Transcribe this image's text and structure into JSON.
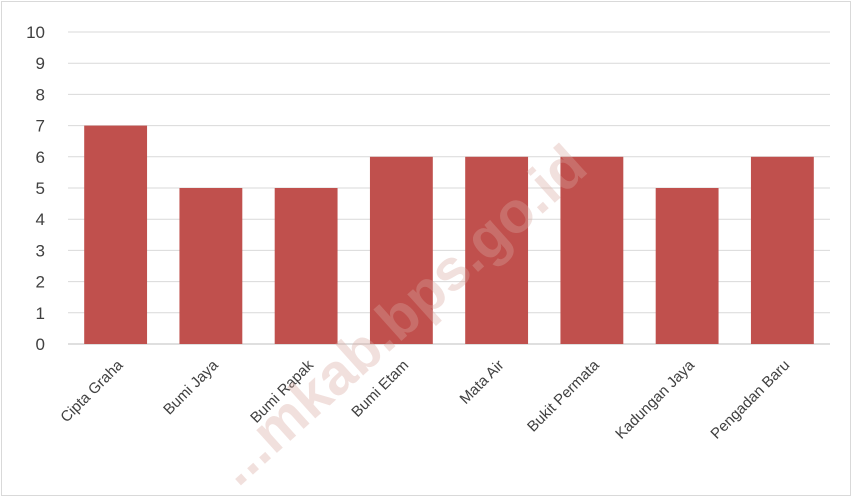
{
  "watermark": "...mkab.bps.go.id",
  "colors": {
    "bar": "#c0504d",
    "grid": "#d9d9d9",
    "axis": "#bfbfbf",
    "text": "#404040"
  },
  "chart_data": {
    "type": "bar",
    "title": "",
    "xlabel": "",
    "ylabel": "",
    "categories": [
      "Cipta Graha",
      "Bumi Jaya",
      "Bumi Rapak",
      "Bumi Etam",
      "Mata Air",
      "Bukit Permata",
      "Kadungan Jaya",
      "Pengadan Baru"
    ],
    "values": [
      7,
      5,
      5,
      6,
      6,
      6,
      5,
      6
    ],
    "ylim": [
      0,
      10
    ],
    "yticks": [
      0,
      1,
      2,
      3,
      4,
      5,
      6,
      7,
      8,
      9,
      10
    ],
    "grid": true,
    "legend": "none"
  }
}
